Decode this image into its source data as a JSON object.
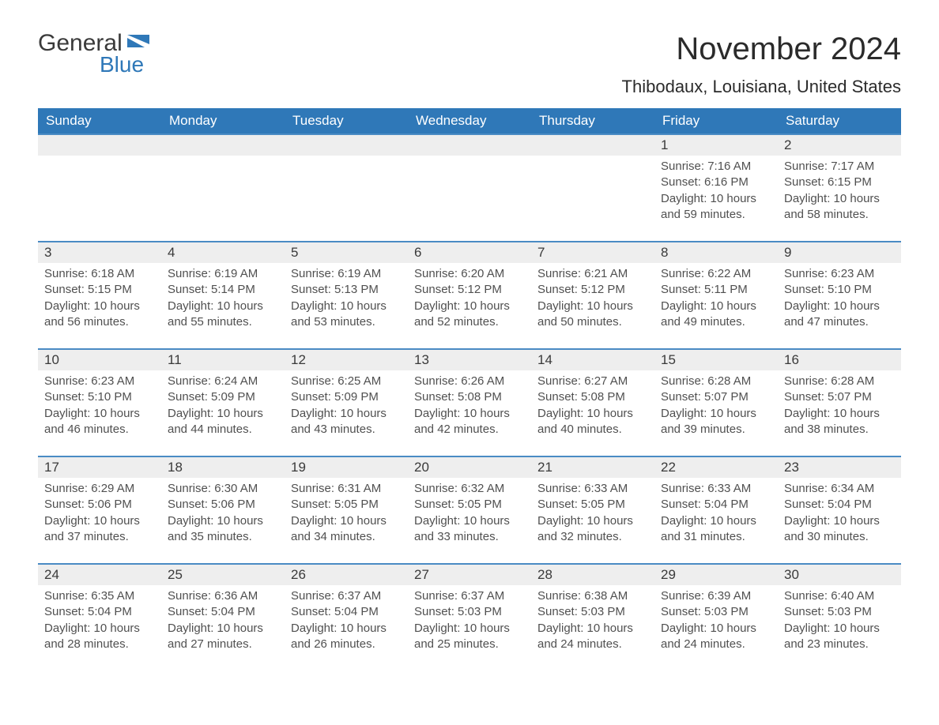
{
  "logo": {
    "line1": "General",
    "line2": "Blue"
  },
  "title": "November 2024",
  "location": "Thibodaux, Louisiana, United States",
  "colors": {
    "header_bg": "#2f78b8",
    "header_text": "#ffffff",
    "row_border": "#4a8bc4",
    "dayhead_bg": "#eeeeee",
    "page_bg": "#ffffff",
    "text": "#303030",
    "text_muted": "#505050",
    "logo_blue": "#2f78b8"
  },
  "calendar": {
    "type": "table",
    "columns": [
      "Sunday",
      "Monday",
      "Tuesday",
      "Wednesday",
      "Thursday",
      "Friday",
      "Saturday"
    ],
    "weeks": [
      [
        null,
        null,
        null,
        null,
        null,
        {
          "n": "1",
          "sunrise": "7:16 AM",
          "sunset": "6:16 PM",
          "daylight": "10 hours and 59 minutes."
        },
        {
          "n": "2",
          "sunrise": "7:17 AM",
          "sunset": "6:15 PM",
          "daylight": "10 hours and 58 minutes."
        }
      ],
      [
        {
          "n": "3",
          "sunrise": "6:18 AM",
          "sunset": "5:15 PM",
          "daylight": "10 hours and 56 minutes."
        },
        {
          "n": "4",
          "sunrise": "6:19 AM",
          "sunset": "5:14 PM",
          "daylight": "10 hours and 55 minutes."
        },
        {
          "n": "5",
          "sunrise": "6:19 AM",
          "sunset": "5:13 PM",
          "daylight": "10 hours and 53 minutes."
        },
        {
          "n": "6",
          "sunrise": "6:20 AM",
          "sunset": "5:12 PM",
          "daylight": "10 hours and 52 minutes."
        },
        {
          "n": "7",
          "sunrise": "6:21 AM",
          "sunset": "5:12 PM",
          "daylight": "10 hours and 50 minutes."
        },
        {
          "n": "8",
          "sunrise": "6:22 AM",
          "sunset": "5:11 PM",
          "daylight": "10 hours and 49 minutes."
        },
        {
          "n": "9",
          "sunrise": "6:23 AM",
          "sunset": "5:10 PM",
          "daylight": "10 hours and 47 minutes."
        }
      ],
      [
        {
          "n": "10",
          "sunrise": "6:23 AM",
          "sunset": "5:10 PM",
          "daylight": "10 hours and 46 minutes."
        },
        {
          "n": "11",
          "sunrise": "6:24 AM",
          "sunset": "5:09 PM",
          "daylight": "10 hours and 44 minutes."
        },
        {
          "n": "12",
          "sunrise": "6:25 AM",
          "sunset": "5:09 PM",
          "daylight": "10 hours and 43 minutes."
        },
        {
          "n": "13",
          "sunrise": "6:26 AM",
          "sunset": "5:08 PM",
          "daylight": "10 hours and 42 minutes."
        },
        {
          "n": "14",
          "sunrise": "6:27 AM",
          "sunset": "5:08 PM",
          "daylight": "10 hours and 40 minutes."
        },
        {
          "n": "15",
          "sunrise": "6:28 AM",
          "sunset": "5:07 PM",
          "daylight": "10 hours and 39 minutes."
        },
        {
          "n": "16",
          "sunrise": "6:28 AM",
          "sunset": "5:07 PM",
          "daylight": "10 hours and 38 minutes."
        }
      ],
      [
        {
          "n": "17",
          "sunrise": "6:29 AM",
          "sunset": "5:06 PM",
          "daylight": "10 hours and 37 minutes."
        },
        {
          "n": "18",
          "sunrise": "6:30 AM",
          "sunset": "5:06 PM",
          "daylight": "10 hours and 35 minutes."
        },
        {
          "n": "19",
          "sunrise": "6:31 AM",
          "sunset": "5:05 PM",
          "daylight": "10 hours and 34 minutes."
        },
        {
          "n": "20",
          "sunrise": "6:32 AM",
          "sunset": "5:05 PM",
          "daylight": "10 hours and 33 minutes."
        },
        {
          "n": "21",
          "sunrise": "6:33 AM",
          "sunset": "5:05 PM",
          "daylight": "10 hours and 32 minutes."
        },
        {
          "n": "22",
          "sunrise": "6:33 AM",
          "sunset": "5:04 PM",
          "daylight": "10 hours and 31 minutes."
        },
        {
          "n": "23",
          "sunrise": "6:34 AM",
          "sunset": "5:04 PM",
          "daylight": "10 hours and 30 minutes."
        }
      ],
      [
        {
          "n": "24",
          "sunrise": "6:35 AM",
          "sunset": "5:04 PM",
          "daylight": "10 hours and 28 minutes."
        },
        {
          "n": "25",
          "sunrise": "6:36 AM",
          "sunset": "5:04 PM",
          "daylight": "10 hours and 27 minutes."
        },
        {
          "n": "26",
          "sunrise": "6:37 AM",
          "sunset": "5:04 PM",
          "daylight": "10 hours and 26 minutes."
        },
        {
          "n": "27",
          "sunrise": "6:37 AM",
          "sunset": "5:03 PM",
          "daylight": "10 hours and 25 minutes."
        },
        {
          "n": "28",
          "sunrise": "6:38 AM",
          "sunset": "5:03 PM",
          "daylight": "10 hours and 24 minutes."
        },
        {
          "n": "29",
          "sunrise": "6:39 AM",
          "sunset": "5:03 PM",
          "daylight": "10 hours and 24 minutes."
        },
        {
          "n": "30",
          "sunrise": "6:40 AM",
          "sunset": "5:03 PM",
          "daylight": "10 hours and 23 minutes."
        }
      ]
    ],
    "labels": {
      "sunrise": "Sunrise:",
      "sunset": "Sunset:",
      "daylight": "Daylight:"
    }
  }
}
